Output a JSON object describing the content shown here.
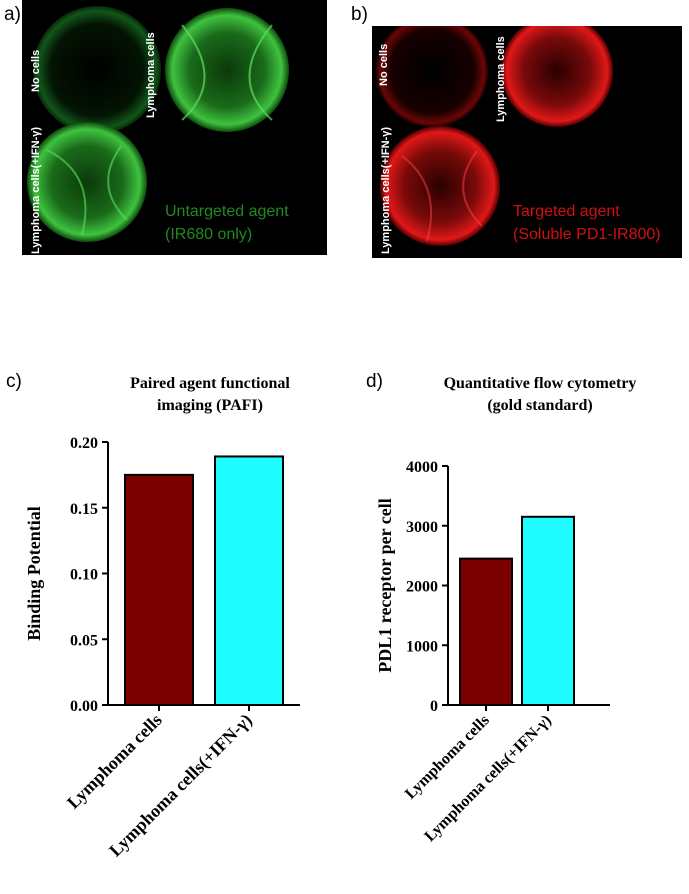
{
  "panels": {
    "a": {
      "letter": "a)",
      "well_labels": [
        "No cells",
        "Lymphoma cells",
        "Lymphoma cells(+IFN-γ)"
      ],
      "agent_line1": "Untargeted agent",
      "agent_line2": "(IR680 only)",
      "color": "#1f8a1f"
    },
    "b": {
      "letter": "b)",
      "well_labels": [
        "No cells",
        "Lymphoma cells",
        "Lymphoma cells(+IFN-γ)"
      ],
      "agent_line1": "Targeted agent",
      "agent_line2": "(Soluble PD1-IR800)",
      "color": "#d01010"
    },
    "c": {
      "letter": "c)"
    },
    "d": {
      "letter": "d)"
    }
  },
  "chart_data": [
    {
      "type": "bar",
      "title_line1": "Paired agent functional",
      "title_line2": "imaging (PAFI)",
      "ylabel": "Binding Potential",
      "categories": [
        "Lymphoma cells",
        "Lymphoma cells(+IFN-γ)"
      ],
      "values": [
        0.175,
        0.189
      ],
      "colors": [
        "#7a0000",
        "#1ffcff"
      ],
      "ylim": [
        0,
        0.2
      ],
      "yticks": [
        "0.00",
        "0.05",
        "0.10",
        "0.15",
        "0.20"
      ],
      "ytick_values": [
        0,
        0.05,
        0.1,
        0.15,
        0.2
      ]
    },
    {
      "type": "bar",
      "title_line1": "Quantitative flow cytometry",
      "title_line2": "(gold standard)",
      "ylabel": "PDL1 receptor per cell",
      "categories": [
        "Lymphoma cells",
        "Lymphoma cells(+IFN-γ)"
      ],
      "values": [
        2450,
        3150
      ],
      "colors": [
        "#7a0000",
        "#1ffcff"
      ],
      "ylim": [
        0,
        4000
      ],
      "yticks": [
        "0",
        "1000",
        "2000",
        "3000",
        "4000"
      ],
      "ytick_values": [
        0,
        1000,
        2000,
        3000,
        4000
      ]
    }
  ]
}
